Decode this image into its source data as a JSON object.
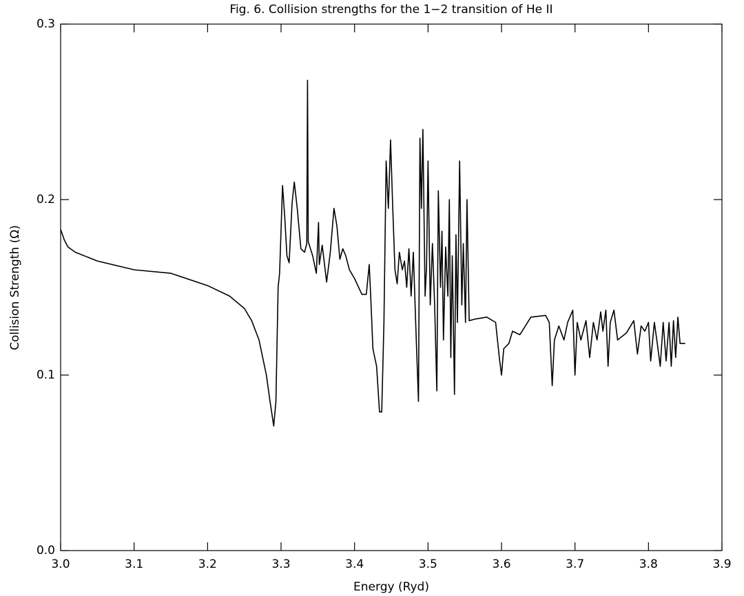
{
  "chart_data": {
    "type": "line",
    "title": "Fig. 6. Collision strengths for the 1−2 transition of He II",
    "x_label": "Energy (Ryd)",
    "y_label": "Collision Strength (Ω)",
    "xlim": [
      3.0,
      3.9
    ],
    "ylim": [
      0.0,
      0.3
    ],
    "xticks": [
      {
        "value": 3.0,
        "label": "3.0"
      },
      3.1,
      3.2,
      3.3,
      3.4,
      3.5,
      3.6,
      3.7,
      3.8,
      3.9
    ],
    "yticks": [
      {
        "value": 0.0,
        "label": "0.0"
      },
      0.1,
      0.2,
      0.3
    ],
    "grid": false,
    "color": "#000000",
    "x": [
      3.0,
      3.005,
      3.01,
      3.02,
      3.05,
      3.1,
      3.15,
      3.2,
      3.23,
      3.25,
      3.26,
      3.27,
      3.28,
      3.285,
      3.29,
      3.293,
      3.296,
      3.298,
      3.302,
      3.305,
      3.308,
      3.311,
      3.315,
      3.318,
      3.322,
      3.327,
      3.332,
      3.335,
      3.336,
      3.337,
      3.343,
      3.348,
      3.351,
      3.352,
      3.356,
      3.362,
      3.367,
      3.372,
      3.376,
      3.38,
      3.384,
      3.388,
      3.393,
      3.4,
      3.41,
      3.416,
      3.42,
      3.422,
      3.425,
      3.43,
      3.434,
      3.437,
      3.44,
      3.443,
      3.446,
      3.449,
      3.452,
      3.455,
      3.458,
      3.461,
      3.465,
      3.468,
      3.471,
      3.474,
      3.477,
      3.48,
      3.484,
      3.487,
      3.489,
      3.491,
      3.493,
      3.496,
      3.498,
      3.5,
      3.503,
      3.506,
      3.509,
      3.512,
      3.514,
      3.517,
      3.519,
      3.521,
      3.524,
      3.527,
      3.529,
      3.531,
      3.533,
      3.536,
      3.538,
      3.54,
      3.543,
      3.546,
      3.548,
      3.551,
      3.553,
      3.556,
      3.565,
      3.58,
      3.592,
      3.597,
      3.6,
      3.603,
      3.61,
      3.615,
      3.625,
      3.64,
      3.66,
      3.665,
      3.669,
      3.672,
      3.678,
      3.685,
      3.69,
      3.697,
      3.7,
      3.703,
      3.708,
      3.715,
      3.72,
      3.725,
      3.73,
      3.735,
      3.738,
      3.742,
      3.745,
      3.748,
      3.753,
      3.758,
      3.77,
      3.78,
      3.785,
      3.79,
      3.795,
      3.8,
      3.803,
      3.808,
      3.812,
      3.816,
      3.82,
      3.824,
      3.828,
      3.831,
      3.834,
      3.837,
      3.84,
      3.843,
      3.85
    ],
    "values": [
      0.183,
      0.177,
      0.173,
      0.17,
      0.165,
      0.16,
      0.158,
      0.151,
      0.145,
      0.138,
      0.131,
      0.12,
      0.1,
      0.085,
      0.071,
      0.085,
      0.15,
      0.158,
      0.208,
      0.19,
      0.168,
      0.164,
      0.198,
      0.21,
      0.195,
      0.172,
      0.17,
      0.175,
      0.268,
      0.176,
      0.168,
      0.158,
      0.187,
      0.163,
      0.174,
      0.153,
      0.17,
      0.195,
      0.185,
      0.166,
      0.172,
      0.168,
      0.16,
      0.155,
      0.146,
      0.146,
      0.163,
      0.145,
      0.115,
      0.105,
      0.079,
      0.079,
      0.13,
      0.222,
      0.195,
      0.234,
      0.195,
      0.16,
      0.152,
      0.17,
      0.16,
      0.165,
      0.15,
      0.172,
      0.145,
      0.17,
      0.12,
      0.085,
      0.235,
      0.195,
      0.24,
      0.145,
      0.162,
      0.222,
      0.14,
      0.175,
      0.14,
      0.091,
      0.205,
      0.15,
      0.182,
      0.12,
      0.173,
      0.145,
      0.2,
      0.11,
      0.168,
      0.089,
      0.18,
      0.13,
      0.222,
      0.14,
      0.175,
      0.13,
      0.2,
      0.131,
      0.132,
      0.133,
      0.13,
      0.11,
      0.1,
      0.115,
      0.118,
      0.125,
      0.123,
      0.133,
      0.134,
      0.13,
      0.094,
      0.12,
      0.128,
      0.12,
      0.13,
      0.137,
      0.1,
      0.13,
      0.12,
      0.131,
      0.11,
      0.13,
      0.12,
      0.136,
      0.125,
      0.137,
      0.105,
      0.13,
      0.137,
      0.12,
      0.124,
      0.131,
      0.112,
      0.128,
      0.125,
      0.13,
      0.108,
      0.13,
      0.118,
      0.105,
      0.13,
      0.108,
      0.13,
      0.105,
      0.131,
      0.11,
      0.133,
      0.118,
      0.118
    ]
  }
}
